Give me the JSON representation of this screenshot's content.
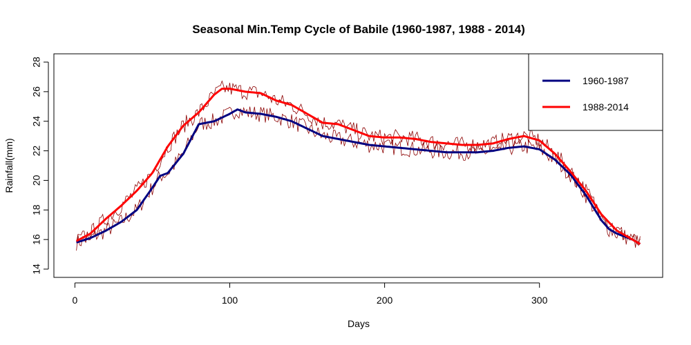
{
  "chart_data": {
    "type": "line",
    "title": "Seasonal Min.Temp Cycle of Babile (1960-1987, 1988 - 2014)",
    "xlabel": "Days",
    "ylabel": "Rainfall(mm)",
    "xlim": [
      1,
      365
    ],
    "ylim": [
      14,
      28
    ],
    "x_ticks": [
      0,
      100,
      200,
      300
    ],
    "y_ticks": [
      14,
      16,
      18,
      20,
      22,
      24,
      26,
      28
    ],
    "legend_position": "top-right",
    "series": [
      {
        "name": "1960-1987",
        "color": "#000080",
        "x": [
          1,
          10,
          20,
          30,
          40,
          50,
          55,
          60,
          70,
          80,
          90,
          100,
          105,
          110,
          120,
          130,
          140,
          150,
          160,
          170,
          180,
          190,
          200,
          210,
          220,
          230,
          240,
          250,
          260,
          270,
          280,
          290,
          300,
          310,
          320,
          330,
          340,
          345,
          350,
          360,
          365
        ],
        "y": [
          15.8,
          16.1,
          16.6,
          17.2,
          18.0,
          19.5,
          20.3,
          20.5,
          21.8,
          23.8,
          24.0,
          24.5,
          24.8,
          24.6,
          24.5,
          24.3,
          24.0,
          23.5,
          23.0,
          22.8,
          22.6,
          22.4,
          22.3,
          22.2,
          22.1,
          22.0,
          21.9,
          21.9,
          21.9,
          22.0,
          22.2,
          22.3,
          22.1,
          21.4,
          20.4,
          19.0,
          17.3,
          16.7,
          16.4,
          16.0,
          15.7
        ]
      },
      {
        "name": "1988-2014",
        "color": "#ff0000",
        "x": [
          1,
          10,
          20,
          30,
          40,
          50,
          60,
          70,
          80,
          90,
          95,
          100,
          110,
          120,
          130,
          140,
          150,
          160,
          170,
          180,
          190,
          200,
          210,
          220,
          230,
          240,
          250,
          260,
          270,
          280,
          290,
          300,
          310,
          320,
          330,
          340,
          350,
          360,
          365
        ],
        "y": [
          15.9,
          16.4,
          17.4,
          18.3,
          19.3,
          20.5,
          22.3,
          23.7,
          24.6,
          25.8,
          26.2,
          26.2,
          26.0,
          25.9,
          25.4,
          25.1,
          24.5,
          23.9,
          23.8,
          23.4,
          23.0,
          22.9,
          22.9,
          22.8,
          22.6,
          22.5,
          22.4,
          22.4,
          22.5,
          22.8,
          23.0,
          22.7,
          21.8,
          20.6,
          19.3,
          17.7,
          16.6,
          16.0,
          15.7
        ]
      }
    ],
    "raw_series_color": "#8b0000"
  }
}
